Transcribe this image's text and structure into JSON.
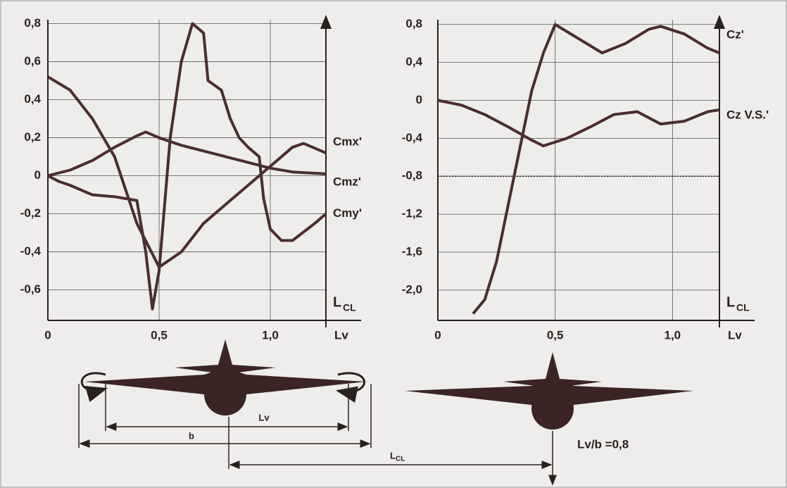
{
  "chart_data": [
    {
      "type": "line",
      "xlabel": "Lv",
      "ylabel": "L",
      "ylabel_sub": "CL",
      "xlim": [
        0,
        1.25
      ],
      "ylim": [
        -0.76,
        0.82
      ],
      "xticks": [
        {
          "value": 0,
          "label": "0"
        },
        {
          "value": 0.5,
          "label": "0,5"
        },
        {
          "value": 1,
          "label": "1,0"
        }
      ],
      "yticks": [
        {
          "value": 0.8,
          "label": "0,8"
        },
        {
          "value": 0.6,
          "label": "0,6"
        },
        {
          "value": 0.4,
          "label": "0,4"
        },
        {
          "value": 0.2,
          "label": "0,2"
        },
        0,
        {
          "value": -0.2,
          "label": "-0,2"
        },
        {
          "value": -0.4,
          "label": "-0,4"
        },
        {
          "value": -0.6,
          "label": "-0,6"
        }
      ],
      "grid": true,
      "color": "#4a2e2e",
      "series": [
        {
          "name": "Cmx'",
          "x": [
            0,
            0.1,
            0.2,
            0.3,
            0.4,
            0.5,
            0.6,
            0.7,
            0.8,
            0.9,
            1.0,
            1.1,
            1.15,
            1.25
          ],
          "values": [
            0.52,
            0.45,
            0.3,
            0.1,
            -0.25,
            -0.48,
            -0.4,
            -0.25,
            -0.15,
            -0.05,
            0.05,
            0.15,
            0.17,
            0.12
          ]
        },
        {
          "name": "Cmz'",
          "x": [
            0,
            0.1,
            0.2,
            0.3,
            0.4,
            0.44,
            0.5,
            0.6,
            0.7,
            0.8,
            0.9,
            1.0,
            1.1,
            1.25
          ],
          "values": [
            0,
            0.03,
            0.08,
            0.15,
            0.21,
            0.23,
            0.2,
            0.16,
            0.13,
            0.1,
            0.07,
            0.04,
            0.02,
            0.01
          ]
        },
        {
          "name": "Cmy'",
          "x": [
            0,
            0.05,
            0.1,
            0.2,
            0.3,
            0.4,
            0.44,
            0.47,
            0.5,
            0.55,
            0.6,
            0.65,
            0.7,
            0.72,
            0.78,
            0.82,
            0.86,
            0.9,
            0.95,
            0.97,
            1.0,
            1.05,
            1.1,
            1.2,
            1.25
          ],
          "values": [
            0,
            -0.03,
            -0.05,
            -0.1,
            -0.11,
            -0.13,
            -0.4,
            -0.7,
            -0.5,
            0.2,
            0.6,
            0.8,
            0.75,
            0.5,
            0.45,
            0.3,
            0.2,
            0.15,
            0.1,
            -0.12,
            -0.28,
            -0.34,
            -0.34,
            -0.25,
            -0.2
          ]
        }
      ]
    },
    {
      "type": "line",
      "xlabel": "Lv",
      "ylabel": "L",
      "ylabel_sub": "CL",
      "xlim": [
        0,
        1.2
      ],
      "ylim": [
        -2.32,
        0.85
      ],
      "xticks": [
        {
          "value": 0,
          "label": "0"
        },
        {
          "value": 0.5,
          "label": "0,5"
        },
        {
          "value": 1,
          "label": "1,0"
        }
      ],
      "yticks": [
        {
          "value": 0.8,
          "label": "0,8"
        },
        {
          "value": 0.4,
          "label": "0,4"
        },
        0,
        {
          "value": -0.4,
          "label": "-0,4"
        },
        {
          "value": -0.8,
          "label": "-0,8"
        },
        {
          "value": -1.2,
          "label": "-1,2"
        },
        {
          "value": -1.6,
          "label": "-1,6"
        },
        {
          "value": -2,
          "label": "-2,0"
        }
      ],
      "grid": true,
      "color": "#4a2e2e",
      "hline": -0.8,
      "series": [
        {
          "name": "Cz'",
          "x": [
            0.15,
            0.2,
            0.25,
            0.3,
            0.35,
            0.4,
            0.45,
            0.5,
            0.6,
            0.7,
            0.8,
            0.9,
            0.95,
            1.05,
            1.15,
            1.2
          ],
          "values": [
            -2.25,
            -2.1,
            -1.7,
            -1.1,
            -0.5,
            0.1,
            0.5,
            0.8,
            0.65,
            0.5,
            0.6,
            0.75,
            0.78,
            0.7,
            0.55,
            0.5
          ]
        },
        {
          "name": "Cz V.S.'",
          "x": [
            0,
            0.1,
            0.2,
            0.3,
            0.4,
            0.45,
            0.55,
            0.65,
            0.75,
            0.85,
            0.95,
            1.05,
            1.15,
            1.2
          ],
          "values": [
            0,
            -0.05,
            -0.15,
            -0.28,
            -0.42,
            -0.48,
            -0.4,
            -0.28,
            -0.15,
            -0.12,
            -0.25,
            -0.22,
            -0.12,
            -0.1
          ]
        }
      ]
    }
  ],
  "diagram": {
    "lv": "Lv",
    "b": "b",
    "lcl": "L",
    "lcl_sub": "CL",
    "ratio": "Lv/b =0,8"
  }
}
